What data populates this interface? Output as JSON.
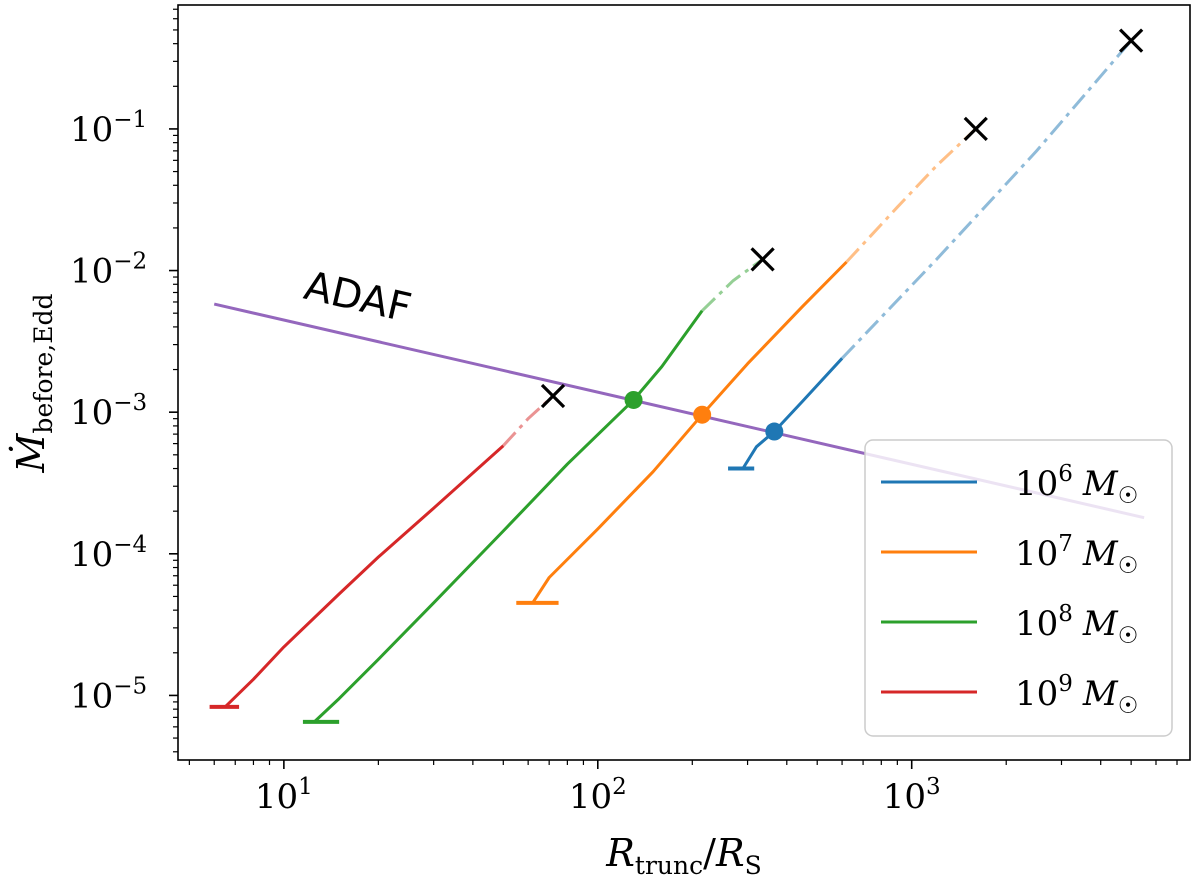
{
  "chart_data": {
    "type": "line",
    "xscale": "log",
    "yscale": "log",
    "xlim": [
      4.6,
      7700
    ],
    "ylim": [
      3.5e-06,
      0.75
    ],
    "xlabel": "R_trunc/R_S",
    "ylabel": "Ṁ_before,Edd",
    "x_ticks": [
      {
        "value": 10,
        "base": "10",
        "exp": "1"
      },
      {
        "value": 100,
        "base": "10",
        "exp": "2"
      },
      {
        "value": 1000,
        "base": "10",
        "exp": "3"
      }
    ],
    "y_ticks": [
      {
        "value": 1e-05,
        "base": "10",
        "exp": "−5"
      },
      {
        "value": 0.0001,
        "base": "10",
        "exp": "−4"
      },
      {
        "value": 0.001,
        "base": "10",
        "exp": "−3"
      },
      {
        "value": 0.01,
        "base": "10",
        "exp": "−2"
      },
      {
        "value": 0.1,
        "base": "10",
        "exp": "−1"
      }
    ],
    "adaf": {
      "label": "ADAF",
      "color": "#9467bd",
      "x": [
        6,
        5500
      ],
      "y": [
        0.0058,
        0.00018
      ]
    },
    "series": [
      {
        "name": "10^6 M☉",
        "legend_base": "10",
        "legend_exp": "6",
        "color": "#1f77b4",
        "floor": {
          "x1": 260,
          "x2": 315,
          "y": 0.0004
        },
        "solid": {
          "x": [
            290,
            320,
            365,
            450,
            600
          ],
          "y": [
            0.0004,
            0.00057,
            0.00073,
            0.0012,
            0.0024
          ]
        },
        "dashed": {
          "x": [
            600,
            1200,
            2500,
            5000
          ],
          "y": [
            0.0024,
            0.012,
            0.07,
            0.42
          ]
        },
        "intersection": {
          "x": 365,
          "y": 0.00073
        },
        "end": {
          "x": 5000,
          "y": 0.42
        }
      },
      {
        "name": "10^7 M☉",
        "legend_base": "10",
        "legend_exp": "7",
        "color": "#ff7f0e",
        "floor": {
          "x1": 55,
          "x2": 75,
          "y": 4.5e-05
        },
        "solid": {
          "x": [
            62,
            70,
            100,
            150,
            215,
            300,
            450,
            620
          ],
          "y": [
            4.5e-05,
            6.8e-05,
            0.00015,
            0.00038,
            0.00096,
            0.0022,
            0.0056,
            0.0115
          ]
        },
        "dashed": {
          "x": [
            620,
            900,
            1200,
            1600
          ],
          "y": [
            0.0115,
            0.028,
            0.055,
            0.1
          ]
        },
        "intersection": {
          "x": 215,
          "y": 0.00096
        },
        "end": {
          "x": 1600,
          "y": 0.1
        }
      },
      {
        "name": "10^8 M☉",
        "legend_base": "10",
        "legend_exp": "8",
        "color": "#2ca02c",
        "floor": {
          "x1": 11.5,
          "x2": 15,
          "y": 6.5e-06
        },
        "solid": {
          "x": [
            12.5,
            15,
            20,
            30,
            50,
            80,
            130,
            160,
            215
          ],
          "y": [
            6.5e-06,
            9.5e-06,
            1.8e-05,
            4.5e-05,
            0.000145,
            0.00043,
            0.00122,
            0.0021,
            0.0052
          ]
        },
        "dashed": {
          "x": [
            215,
            270,
            335
          ],
          "y": [
            0.0052,
            0.0085,
            0.012
          ]
        },
        "intersection": {
          "x": 130,
          "y": 0.00122
        },
        "end": {
          "x": 335,
          "y": 0.012
        }
      },
      {
        "name": "10^9 M☉",
        "legend_base": "10",
        "legend_exp": "9",
        "color": "#d62728",
        "floor": {
          "x1": 5.8,
          "x2": 7.2,
          "y": 8.3e-06
        },
        "solid": {
          "x": [
            6.5,
            8,
            10,
            15,
            20,
            30,
            50
          ],
          "y": [
            8.3e-06,
            1.3e-05,
            2.2e-05,
            5.2e-05,
            9.5e-05,
            0.00021,
            0.00058
          ]
        },
        "dashed": {
          "x": [
            50,
            60,
            72
          ],
          "y": [
            0.00058,
            0.0009,
            0.0013
          ]
        },
        "intersection": null,
        "end": {
          "x": 72,
          "y": 0.0013
        }
      }
    ],
    "legend": {
      "position": "lower-right"
    }
  }
}
